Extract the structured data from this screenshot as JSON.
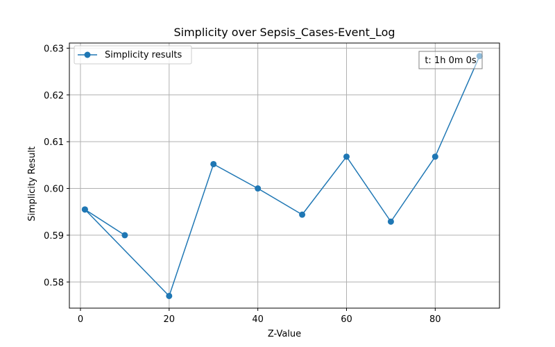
{
  "chart_data": {
    "type": "line",
    "title": "Simplicity over Sepsis_Cases-Event_Log",
    "xlabel": "Z-Value",
    "ylabel": "Simplicity Result",
    "xlim": [
      -2.5,
      94.5
    ],
    "ylim": [
      0.5744,
      0.6311
    ],
    "xticks": [
      0,
      20,
      40,
      60,
      80
    ],
    "xtick_labels": [
      "0",
      "20",
      "40",
      "60",
      "80"
    ],
    "yticks": [
      0.58,
      0.59,
      0.6,
      0.61,
      0.62,
      0.63
    ],
    "ytick_labels": [
      "0.58",
      "0.59",
      "0.60",
      "0.61",
      "0.62",
      "0.63"
    ],
    "grid": true,
    "legend_position": "upper-left",
    "annotation": "t: 1h 0m 0s",
    "series": [
      {
        "name": "Simplicity results",
        "color": "#1f77b4",
        "marker": "circle",
        "x": [
          1,
          10,
          1,
          20,
          30,
          40,
          50,
          60,
          70,
          80,
          90
        ],
        "y": [
          0.5955,
          0.59,
          0.5955,
          0.577,
          0.6052,
          0.6,
          0.5944,
          0.6068,
          0.5929,
          0.6068,
          0.6283
        ]
      }
    ]
  }
}
